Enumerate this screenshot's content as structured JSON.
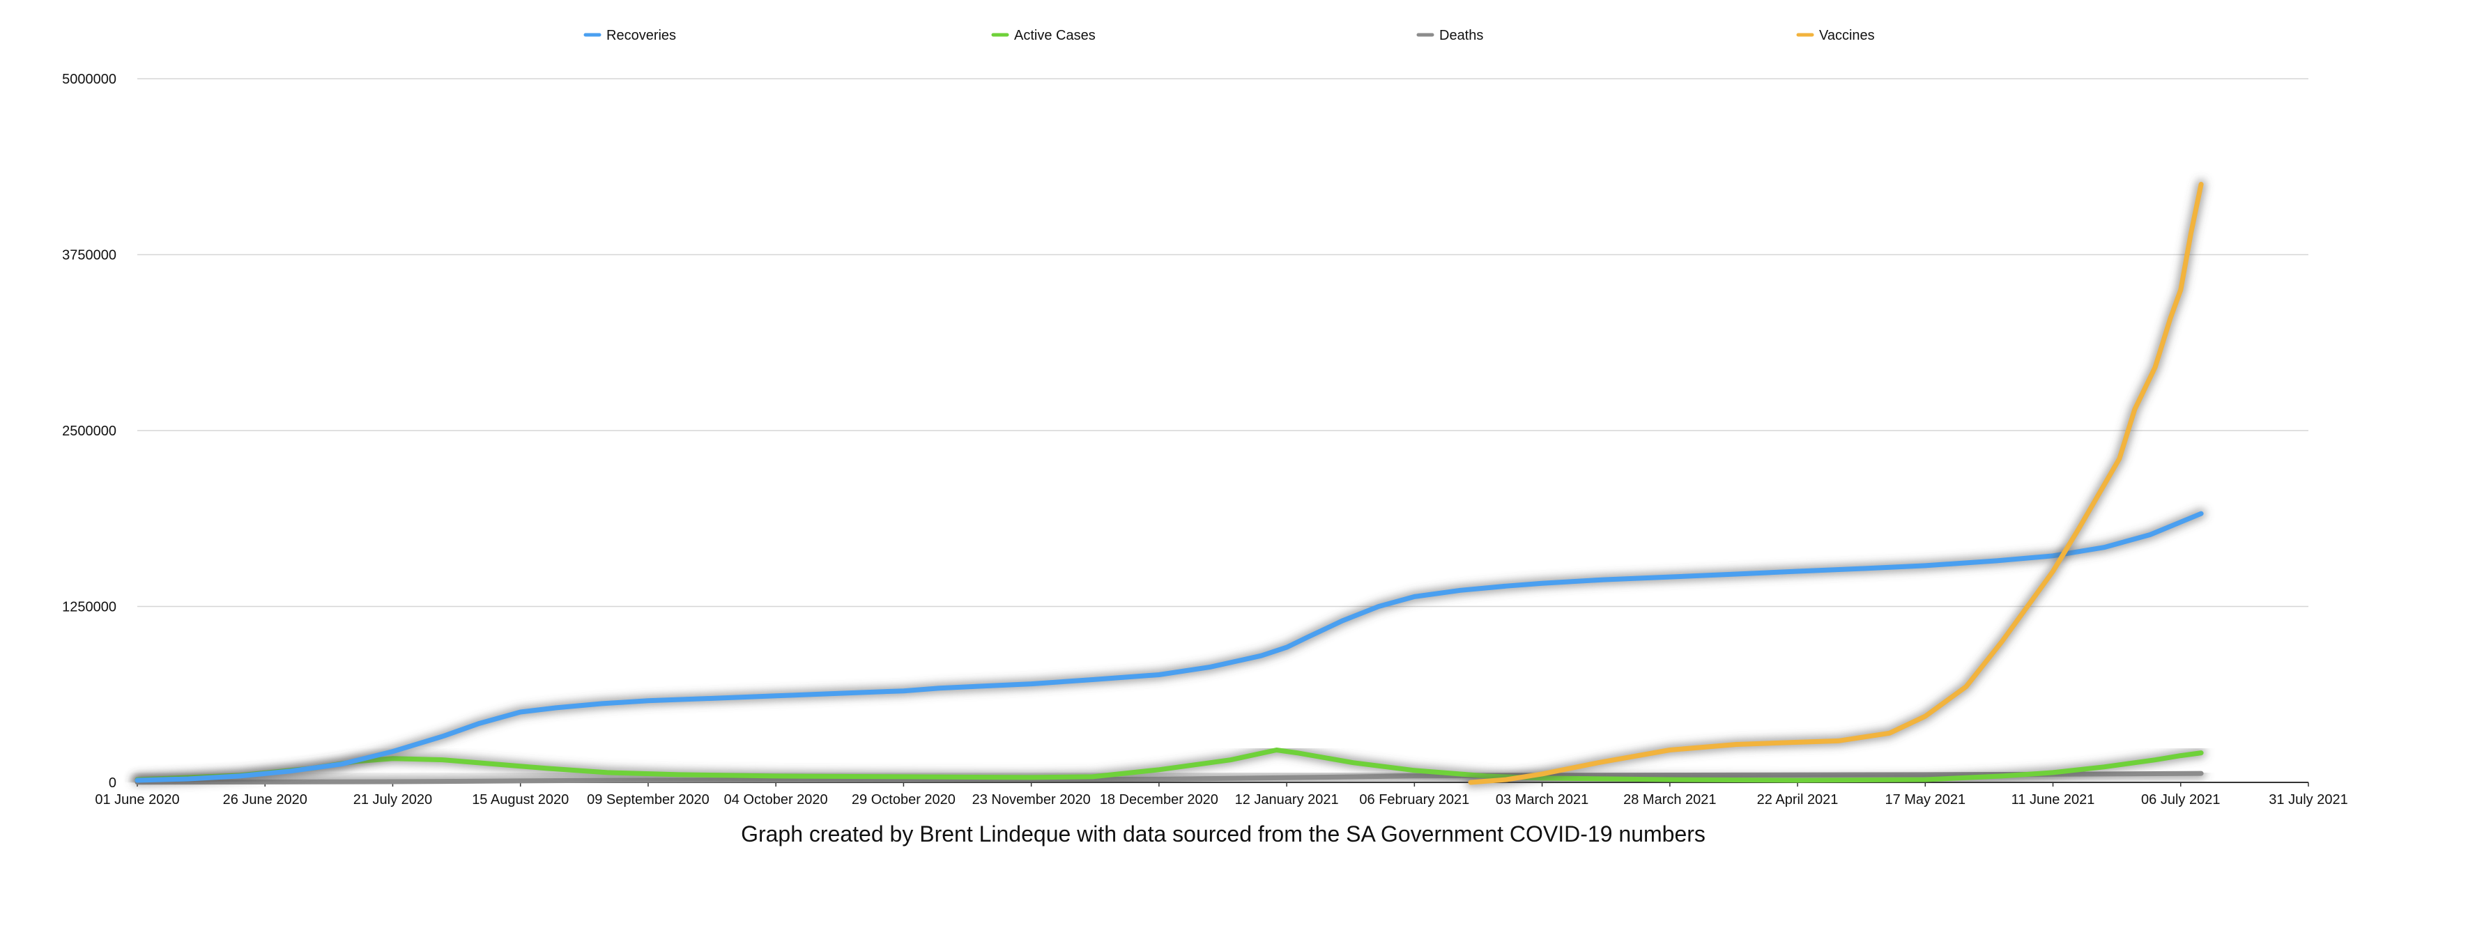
{
  "chart_data": {
    "type": "line",
    "title": "",
    "xlabel": "",
    "ylabel": "",
    "caption": "Graph created by Brent Lindeque with data sourced from the SA Government COVID-19 numbers",
    "x_range": [
      "2020-06-01",
      "2021-07-31"
    ],
    "ylim": [
      0,
      5000000
    ],
    "yticks": [
      0,
      1250000,
      2500000,
      3750000,
      5000000
    ],
    "ytick_labels": [
      "0",
      "1250000",
      "2500000",
      "3750000",
      "5000000"
    ],
    "xticks": [
      {
        "date": "2020-06-01",
        "label": "01 June 2020"
      },
      {
        "date": "2020-06-26",
        "label": "26 June 2020"
      },
      {
        "date": "2020-07-21",
        "label": "21 July 2020"
      },
      {
        "date": "2020-08-15",
        "label": "15 August 2020"
      },
      {
        "date": "2020-09-09",
        "label": "09 September 2020"
      },
      {
        "date": "2020-10-04",
        "label": "04 October 2020"
      },
      {
        "date": "2020-10-29",
        "label": "29 October 2020"
      },
      {
        "date": "2020-11-23",
        "label": "23 November 2020"
      },
      {
        "date": "2020-12-18",
        "label": "18 December 2020"
      },
      {
        "date": "2021-01-12",
        "label": "12 January 2021"
      },
      {
        "date": "2021-02-06",
        "label": "06 February 2021"
      },
      {
        "date": "2021-03-03",
        "label": "03 March 2021"
      },
      {
        "date": "2021-03-28",
        "label": "28 March 2021"
      },
      {
        "date": "2021-04-22",
        "label": "22 April 2021"
      },
      {
        "date": "2021-05-17",
        "label": "17 May 2021"
      },
      {
        "date": "2021-06-11",
        "label": "11 June 2021"
      },
      {
        "date": "2021-07-06",
        "label": "06 July 2021"
      },
      {
        "date": "2021-07-31",
        "label": "31 July 2021"
      }
    ],
    "grid": true,
    "legend_position": "top",
    "series": [
      {
        "name": "Recoveries",
        "color": "#4a9ff0",
        "points": [
          [
            "2020-06-01",
            15000
          ],
          [
            "2020-06-11",
            25000
          ],
          [
            "2020-06-21",
            45000
          ],
          [
            "2020-07-01",
            80000
          ],
          [
            "2020-07-11",
            130000
          ],
          [
            "2020-07-21",
            220000
          ],
          [
            "2020-07-31",
            330000
          ],
          [
            "2020-08-07",
            420000
          ],
          [
            "2020-08-15",
            500000
          ],
          [
            "2020-08-22",
            530000
          ],
          [
            "2020-08-31",
            560000
          ],
          [
            "2020-09-09",
            580000
          ],
          [
            "2020-09-20",
            595000
          ],
          [
            "2020-10-04",
            615000
          ],
          [
            "2020-10-18",
            635000
          ],
          [
            "2020-10-29",
            650000
          ],
          [
            "2020-11-05",
            670000
          ],
          [
            "2020-11-23",
            700000
          ],
          [
            "2020-12-05",
            730000
          ],
          [
            "2020-12-18",
            765000
          ],
          [
            "2020-12-28",
            820000
          ],
          [
            "2021-01-07",
            900000
          ],
          [
            "2021-01-12",
            960000
          ],
          [
            "2021-01-16",
            1030000
          ],
          [
            "2021-01-23",
            1150000
          ],
          [
            "2021-01-30",
            1250000
          ],
          [
            "2021-02-06",
            1320000
          ],
          [
            "2021-02-15",
            1365000
          ],
          [
            "2021-02-24",
            1395000
          ],
          [
            "2021-03-03",
            1415000
          ],
          [
            "2021-03-15",
            1440000
          ],
          [
            "2021-03-28",
            1460000
          ],
          [
            "2021-04-10",
            1480000
          ],
          [
            "2021-04-22",
            1500000
          ],
          [
            "2021-05-05",
            1520000
          ],
          [
            "2021-05-17",
            1540000
          ],
          [
            "2021-05-31",
            1575000
          ],
          [
            "2021-06-11",
            1610000
          ],
          [
            "2021-06-21",
            1670000
          ],
          [
            "2021-06-30",
            1760000
          ],
          [
            "2021-07-06",
            1850000
          ],
          [
            "2021-07-10",
            1910000
          ]
        ]
      },
      {
        "name": "Active Cases",
        "color": "#6fd13a",
        "points": [
          [
            "2020-06-01",
            20000
          ],
          [
            "2020-06-21",
            50000
          ],
          [
            "2020-07-05",
            100000
          ],
          [
            "2020-07-14",
            150000
          ],
          [
            "2020-07-21",
            170000
          ],
          [
            "2020-07-31",
            160000
          ],
          [
            "2020-08-10",
            130000
          ],
          [
            "2020-08-20",
            100000
          ],
          [
            "2020-09-01",
            70000
          ],
          [
            "2020-09-15",
            55000
          ],
          [
            "2020-10-04",
            45000
          ],
          [
            "2020-10-29",
            40000
          ],
          [
            "2020-11-23",
            35000
          ],
          [
            "2020-12-05",
            40000
          ],
          [
            "2020-12-18",
            90000
          ],
          [
            "2021-01-01",
            160000
          ],
          [
            "2021-01-10",
            230000
          ],
          [
            "2021-01-14",
            210000
          ],
          [
            "2021-01-25",
            140000
          ],
          [
            "2021-02-06",
            85000
          ],
          [
            "2021-02-20",
            45000
          ],
          [
            "2021-03-03",
            30000
          ],
          [
            "2021-03-28",
            20000
          ],
          [
            "2021-04-22",
            15000
          ],
          [
            "2021-05-17",
            20000
          ],
          [
            "2021-06-01",
            45000
          ],
          [
            "2021-06-11",
            70000
          ],
          [
            "2021-06-21",
            110000
          ],
          [
            "2021-07-01",
            160000
          ],
          [
            "2021-07-06",
            190000
          ],
          [
            "2021-07-10",
            210000
          ]
        ]
      },
      {
        "name": "Deaths",
        "color": "#8c8c8c",
        "points": [
          [
            "2020-06-01",
            800
          ],
          [
            "2020-07-21",
            5000
          ],
          [
            "2020-08-31",
            14000
          ],
          [
            "2020-10-29",
            19000
          ],
          [
            "2020-12-18",
            23000
          ],
          [
            "2021-01-12",
            33000
          ],
          [
            "2021-02-06",
            46000
          ],
          [
            "2021-03-28",
            52000
          ],
          [
            "2021-05-17",
            55000
          ],
          [
            "2021-06-11",
            58000
          ],
          [
            "2021-07-10",
            64000
          ]
        ]
      },
      {
        "name": "Vaccines",
        "color": "#f2b33d",
        "points": [
          [
            "2021-02-17",
            0
          ],
          [
            "2021-02-24",
            20000
          ],
          [
            "2021-03-03",
            60000
          ],
          [
            "2021-03-14",
            140000
          ],
          [
            "2021-03-28",
            230000
          ],
          [
            "2021-04-10",
            270000
          ],
          [
            "2021-04-22",
            285000
          ],
          [
            "2021-04-30",
            295000
          ],
          [
            "2021-05-10",
            350000
          ],
          [
            "2021-05-17",
            470000
          ],
          [
            "2021-05-25",
            680000
          ],
          [
            "2021-06-01",
            1000000
          ],
          [
            "2021-06-07",
            1300000
          ],
          [
            "2021-06-11",
            1500000
          ],
          [
            "2021-06-16",
            1800000
          ],
          [
            "2021-06-20",
            2050000
          ],
          [
            "2021-06-24",
            2300000
          ],
          [
            "2021-06-27",
            2650000
          ],
          [
            "2021-07-01",
            2950000
          ],
          [
            "2021-07-04",
            3300000
          ],
          [
            "2021-07-06",
            3500000
          ],
          [
            "2021-07-08",
            3900000
          ],
          [
            "2021-07-10",
            4250000
          ]
        ]
      }
    ]
  }
}
